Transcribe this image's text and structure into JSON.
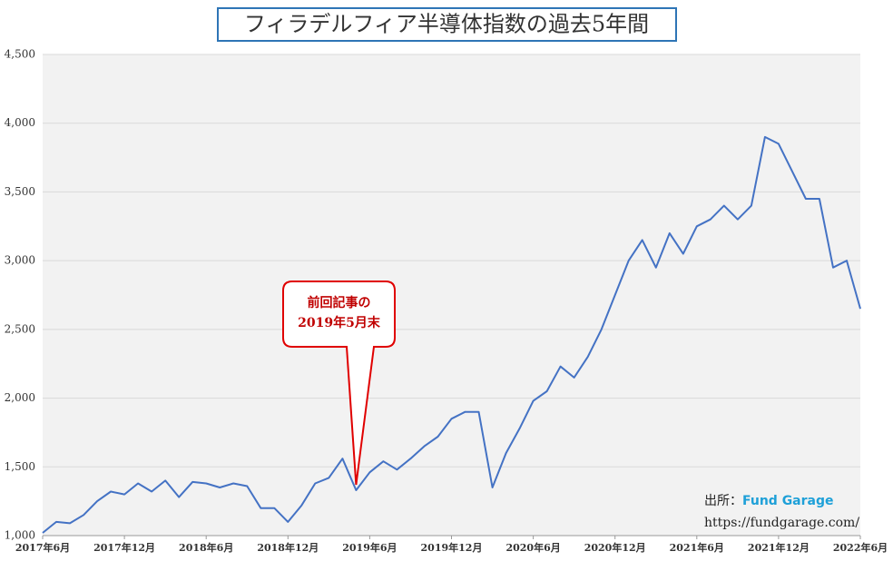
{
  "chart_data": {
    "type": "line",
    "title": "フィラデルフィア半導体指数の過去5年間",
    "x": [
      "2017-06",
      "2017-07",
      "2017-08",
      "2017-09",
      "2017-10",
      "2017-11",
      "2017-12",
      "2018-01",
      "2018-02",
      "2018-03",
      "2018-04",
      "2018-05",
      "2018-06",
      "2018-07",
      "2018-08",
      "2018-09",
      "2018-10",
      "2018-11",
      "2018-12",
      "2019-01",
      "2019-02",
      "2019-03",
      "2019-04",
      "2019-05",
      "2019-06",
      "2019-07",
      "2019-08",
      "2019-09",
      "2019-10",
      "2019-11",
      "2019-12",
      "2020-01",
      "2020-02",
      "2020-03",
      "2020-04",
      "2020-05",
      "2020-06",
      "2020-07",
      "2020-08",
      "2020-09",
      "2020-10",
      "2020-11",
      "2020-12",
      "2021-01",
      "2021-02",
      "2021-03",
      "2021-04",
      "2021-05",
      "2021-06",
      "2021-07",
      "2021-08",
      "2021-09",
      "2021-10",
      "2021-11",
      "2021-12",
      "2022-01",
      "2022-02",
      "2022-03",
      "2022-04",
      "2022-05",
      "2022-06"
    ],
    "series": [
      {
        "name": "フィラデルフィア半導体指数",
        "color": "#4472c4",
        "values": [
          1020,
          1100,
          1090,
          1150,
          1250,
          1320,
          1300,
          1380,
          1320,
          1400,
          1280,
          1390,
          1380,
          1350,
          1380,
          1360,
          1200,
          1200,
          1100,
          1220,
          1380,
          1420,
          1560,
          1330,
          1460,
          1540,
          1480,
          1560,
          1650,
          1720,
          1850,
          1900,
          1900,
          1350,
          1600,
          1780,
          1980,
          2050,
          2230,
          2150,
          2300,
          2500,
          2750,
          3000,
          3150,
          2950,
          3200,
          3050,
          3250,
          3300,
          3400,
          3300,
          3400,
          3900,
          3850,
          3650,
          3450,
          3450,
          2950,
          3000,
          2650
        ]
      }
    ],
    "ylim": [
      1000,
      4500
    ],
    "yticks": [
      {
        "value": 1000,
        "label": "1,000"
      },
      {
        "value": 1500,
        "label": "1,500"
      },
      {
        "value": 2000,
        "label": "2,000"
      },
      {
        "value": 2500,
        "label": "2,500"
      },
      {
        "value": 3000,
        "label": "3,000"
      },
      {
        "value": 3500,
        "label": "3,500"
      },
      {
        "value": 4000,
        "label": "4,000"
      },
      {
        "value": 4500,
        "label": "4,500"
      }
    ],
    "xticks": [
      {
        "value": "2017-06",
        "label": "2017年6月"
      },
      {
        "value": "2017-12",
        "label": "2017年12月"
      },
      {
        "value": "2018-06",
        "label": "2018年6月"
      },
      {
        "value": "2018-12",
        "label": "2018年12月"
      },
      {
        "value": "2019-06",
        "label": "2019年6月"
      },
      {
        "value": "2019-12",
        "label": "2019年12月"
      },
      {
        "value": "2020-06",
        "label": "2020年6月"
      },
      {
        "value": "2020-12",
        "label": "2020年12月"
      },
      {
        "value": "2021-06",
        "label": "2021年6月"
      },
      {
        "value": "2021-12",
        "label": "2021年12月"
      },
      {
        "value": "2022-06",
        "label": "2022年6月"
      }
    ],
    "grid": true,
    "annotation": {
      "lines": [
        "前回記事の",
        "2019年5月末"
      ],
      "x": "2019-05",
      "value": 1330
    },
    "source": {
      "prefix": "出所：",
      "name": "Fund Garage",
      "url": "https://fundgarage.com/"
    }
  }
}
